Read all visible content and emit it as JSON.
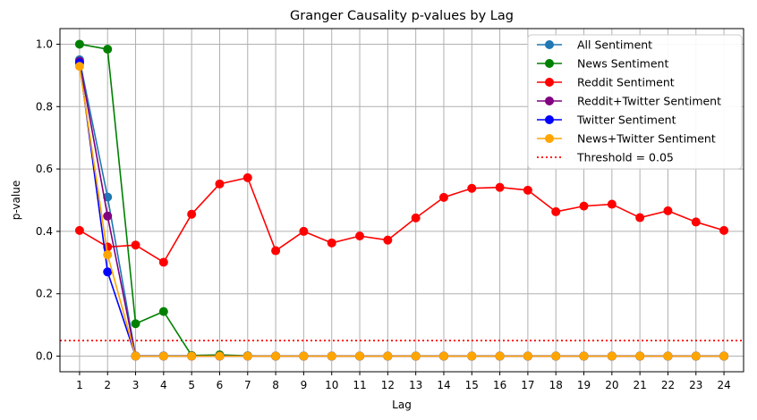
{
  "chart_data": {
    "type": "line",
    "title": "Granger Causality p-values by Lag",
    "xlabel": "Lag",
    "ylabel": "p-value",
    "x": [
      1,
      2,
      3,
      4,
      5,
      6,
      7,
      8,
      9,
      10,
      11,
      12,
      13,
      14,
      15,
      16,
      17,
      18,
      19,
      20,
      21,
      22,
      23,
      24
    ],
    "xlim": [
      0.3,
      24.7
    ],
    "ylim": [
      -0.05,
      1.05
    ],
    "yticks": [
      0.0,
      0.2,
      0.4,
      0.6,
      0.8,
      1.0
    ],
    "ytick_labels": [
      "0.0",
      "0.2",
      "0.4",
      "0.6",
      "0.8",
      "1.0"
    ],
    "grid": true,
    "legend_position": "top-right",
    "series": [
      {
        "name": "All Sentiment",
        "color": "#1f77b4",
        "values": [
          0.95,
          0.51,
          0.001,
          0.001,
          0.001,
          0.001,
          0.001,
          0.0,
          0.0,
          0.0,
          0.0,
          0.0,
          0.0,
          0.0,
          0.0,
          0.0,
          0.0,
          0.0,
          0.0,
          0.0,
          0.0,
          0.0,
          0.0,
          0.0
        ]
      },
      {
        "name": "News Sentiment",
        "color": "#008000",
        "values": [
          1.0,
          0.984,
          0.104,
          0.143,
          0.002,
          0.004,
          0.001,
          0.0,
          0.0,
          0.0,
          0.0,
          0.0,
          0.0,
          0.0,
          0.0,
          0.0,
          0.0,
          0.0,
          0.0,
          0.0,
          0.0,
          0.0,
          0.0,
          0.0
        ]
      },
      {
        "name": "Reddit Sentiment",
        "color": "#ff0000",
        "values": [
          0.403,
          0.35,
          0.356,
          0.301,
          0.455,
          0.552,
          0.572,
          0.338,
          0.4,
          0.363,
          0.385,
          0.372,
          0.443,
          0.509,
          0.538,
          0.541,
          0.532,
          0.463,
          0.481,
          0.487,
          0.444,
          0.466,
          0.43,
          0.403
        ]
      },
      {
        "name": "Reddit+Twitter Sentiment",
        "color": "#800080",
        "values": [
          0.945,
          0.449,
          0.0,
          0.0,
          0.0,
          0.0,
          0.0,
          0.0,
          0.0,
          0.0,
          0.0,
          0.0,
          0.0,
          0.0,
          0.0,
          0.0,
          0.0,
          0.0,
          0.0,
          0.0,
          0.0,
          0.0,
          0.0,
          0.0
        ]
      },
      {
        "name": "Twitter Sentiment",
        "color": "#0000ff",
        "values": [
          0.94,
          0.27,
          0.0,
          0.0,
          0.0,
          0.0,
          0.0,
          0.0,
          0.0,
          0.0,
          0.0,
          0.0,
          0.0,
          0.0,
          0.0,
          0.0,
          0.0,
          0.0,
          0.0,
          0.0,
          0.0,
          0.0,
          0.0,
          0.0
        ]
      },
      {
        "name": "News+Twitter Sentiment",
        "color": "#ffa500",
        "values": [
          0.929,
          0.325,
          0.0,
          0.0,
          0.0,
          0.0,
          0.0,
          0.0,
          0.0,
          0.0,
          0.0,
          0.0,
          0.0,
          0.0,
          0.0,
          0.0,
          0.0,
          0.0,
          0.0,
          0.0,
          0.0,
          0.0,
          0.0,
          0.0
        ]
      }
    ],
    "threshold": {
      "label": "Threshold = 0.05",
      "value": 0.05,
      "color": "#ff0000",
      "style": "dotted"
    }
  }
}
